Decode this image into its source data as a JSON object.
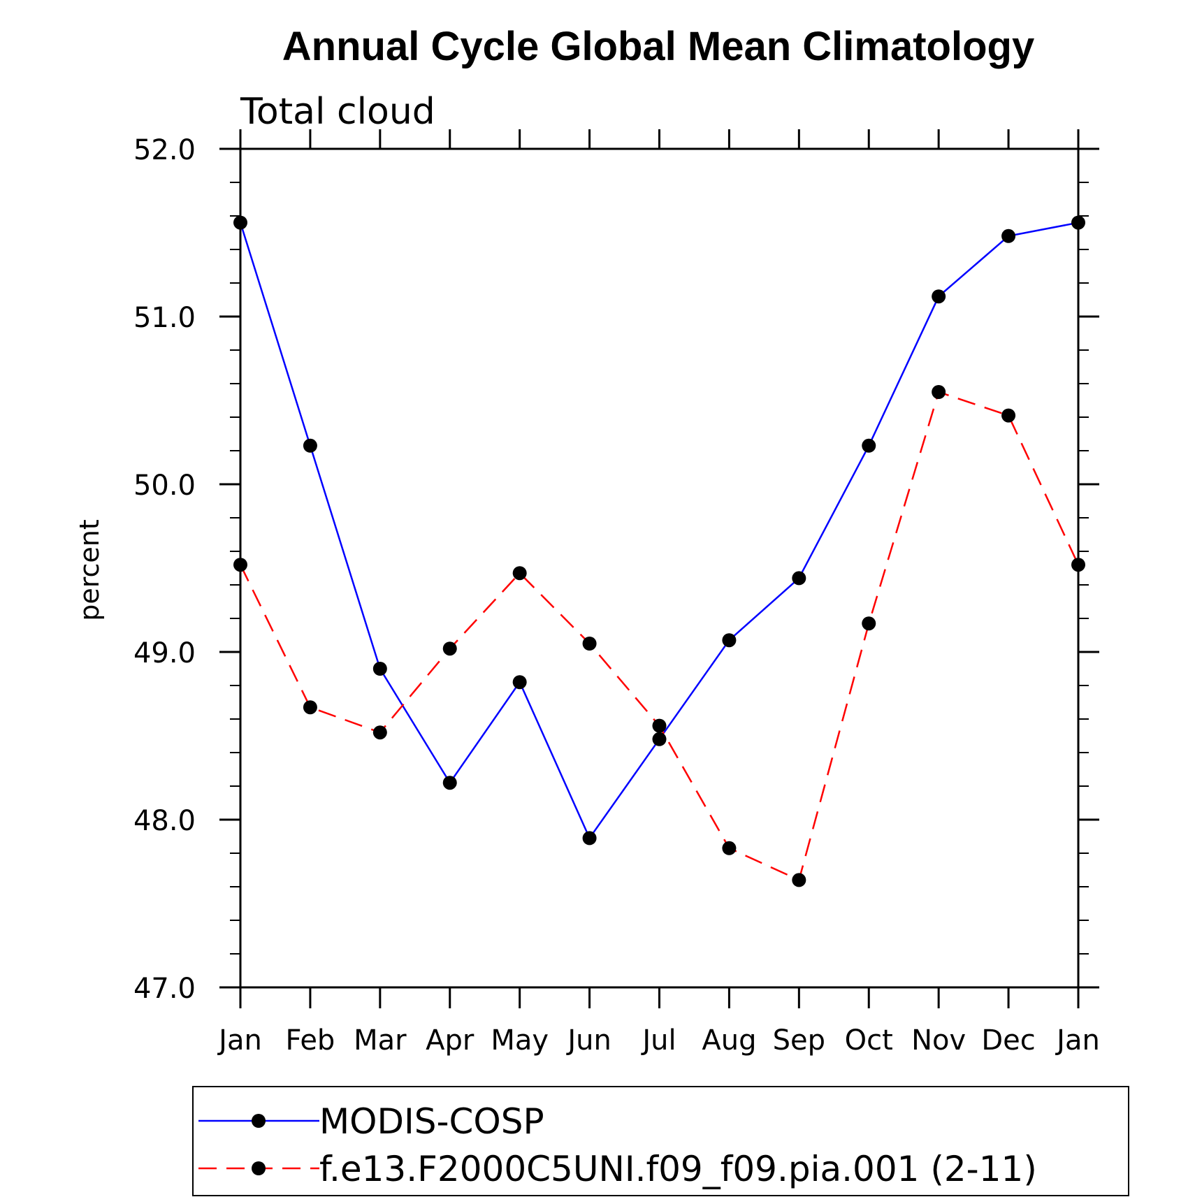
{
  "chart_data": {
    "type": "line",
    "title": "Annual Cycle Global Mean Climatology",
    "subtitle": "Total cloud",
    "xlabel": "",
    "ylabel": "percent",
    "ylim": [
      47.0,
      52.0
    ],
    "yticks": [
      "47.0",
      "48.0",
      "49.0",
      "50.0",
      "51.0",
      "52.0"
    ],
    "categories": [
      "Jan",
      "Feb",
      "Mar",
      "Apr",
      "May",
      "Jun",
      "Jul",
      "Aug",
      "Sep",
      "Oct",
      "Nov",
      "Dec",
      "Jan"
    ],
    "series": [
      {
        "name": "MODIS-COSP",
        "color": "#0000ff",
        "dashed": false,
        "values": [
          51.56,
          50.23,
          48.9,
          48.22,
          48.82,
          47.89,
          48.48,
          49.07,
          49.44,
          50.23,
          51.12,
          51.48,
          51.56
        ]
      },
      {
        "name": "f.e13.F2000C5UNI.f09_f09.pia.001 (2-11)",
        "color": "#ff0000",
        "dashed": true,
        "values": [
          49.52,
          48.67,
          48.52,
          49.02,
          49.47,
          49.05,
          48.56,
          47.83,
          47.64,
          49.17,
          50.55,
          50.41,
          49.52
        ]
      }
    ],
    "legend_position": "bottom"
  }
}
